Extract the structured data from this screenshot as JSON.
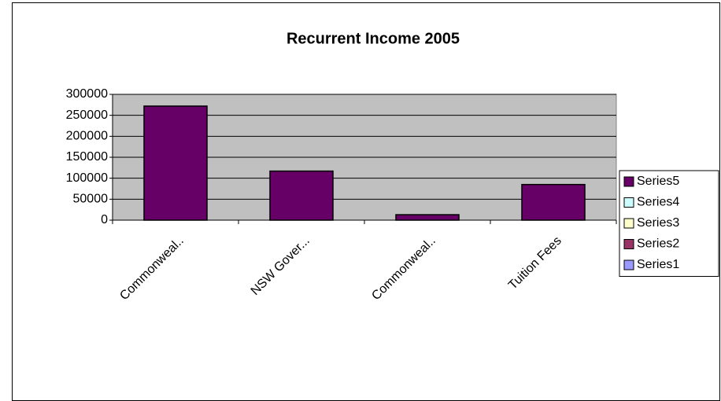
{
  "chart_data": {
    "type": "bar",
    "title": "Recurrent Income 2005",
    "categories": [
      "Commonweal..",
      "NSW Gover...",
      "Commonweal..",
      "Tuition Fees"
    ],
    "series": [
      {
        "name": "Series5",
        "color": "#660066",
        "values": [
          272000,
          117000,
          13000,
          85000
        ]
      },
      {
        "name": "Series4",
        "color": "#ccffff",
        "values": [
          null,
          null,
          null,
          null
        ]
      },
      {
        "name": "Series3",
        "color": "#ffffcc",
        "values": [
          null,
          null,
          null,
          null
        ]
      },
      {
        "name": "Series2",
        "color": "#993366",
        "values": [
          null,
          null,
          null,
          null
        ]
      },
      {
        "name": "Series1",
        "color": "#9999ff",
        "values": [
          null,
          null,
          null,
          null
        ]
      }
    ],
    "ylim": [
      0,
      300000
    ],
    "yticks": [
      0,
      50000,
      100000,
      150000,
      200000,
      250000,
      300000
    ],
    "grid": true,
    "legend": "right",
    "plot_background": "#c0c0c0"
  }
}
